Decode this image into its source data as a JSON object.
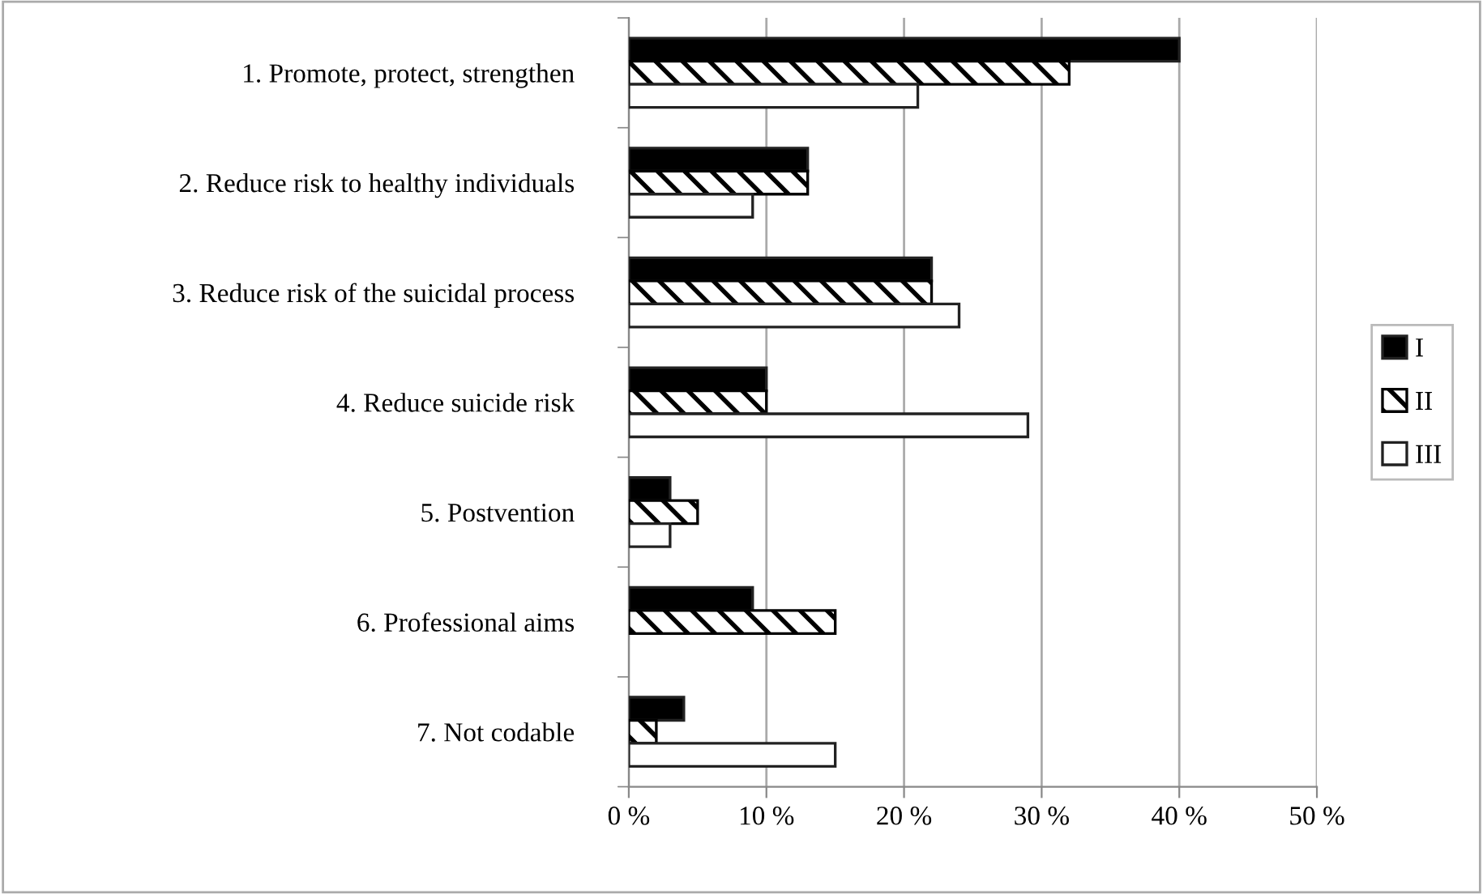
{
  "chart_data": {
    "type": "bar",
    "orientation": "horizontal",
    "categories": [
      "1. Promote, protect, strengthen",
      "2. Reduce risk to healthy individuals",
      "3. Reduce risk of the suicidal process",
      "4. Reduce suicide risk",
      "5. Postvention",
      "6. Professional aims",
      "7. Not codable"
    ],
    "series": [
      {
        "name": "I",
        "color": "#000000",
        "values": [
          40,
          13,
          22,
          10,
          3,
          9,
          4
        ]
      },
      {
        "name": "II",
        "color": "#000000",
        "values": [
          32,
          13,
          22,
          10,
          5,
          15,
          2
        ]
      },
      {
        "name": "III",
        "color": "#ffffff",
        "values": [
          21,
          9,
          24,
          29,
          3,
          0,
          15
        ]
      }
    ],
    "xlim": [
      0,
      50
    ],
    "xticks": [
      {
        "value": 0,
        "label": "0 %"
      },
      {
        "value": 10,
        "label": "10 %"
      },
      {
        "value": 20,
        "label": "20 %"
      },
      {
        "value": 30,
        "label": "30 %"
      },
      {
        "value": 40,
        "label": "40 %"
      },
      {
        "value": 50,
        "label": "50 %"
      }
    ],
    "grid": "x",
    "legend": "right"
  }
}
